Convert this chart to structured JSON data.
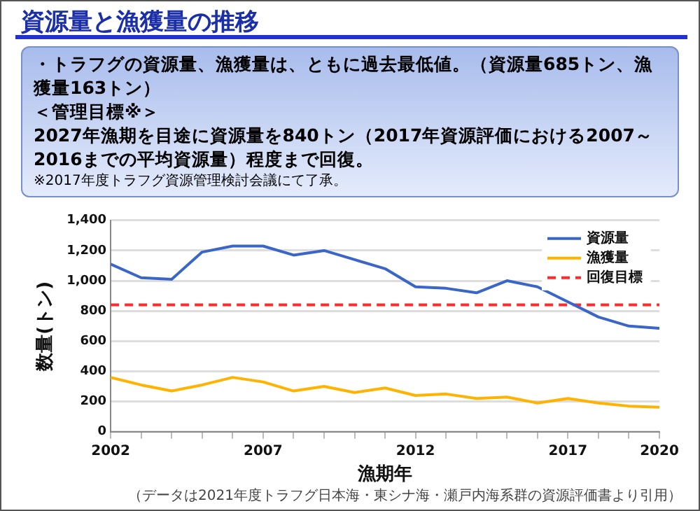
{
  "chart_data": {
    "type": "line",
    "title": "資源量と漁獲量の推移",
    "xlabel": "漁期年",
    "ylabel": "数量(トン)",
    "annotations": [
      "・トラフグの資源量、漁獲量は、ともに過去最低値。（資源量685トン、漁獲量163トン）",
      "＜管理目標※＞",
      "2027年漁期を目途に資源量を840トン（2017年資源評価における2007～2016までの平均資源量）程度まで回復。",
      "※2017年度トラフグ資源管理検討会議にて了承。",
      "（データは2021年度トラフグ日本海・東シナ海・瀬戸内海系群の資源評価書より引用）"
    ],
    "x": [
      2002,
      2003,
      2004,
      2005,
      2006,
      2007,
      2008,
      2009,
      2010,
      2011,
      2012,
      2013,
      2014,
      2015,
      2016,
      2017,
      2018,
      2019,
      2020
    ],
    "series": [
      {
        "name": "資源量",
        "color": "#3a66c8",
        "values": [
          1110,
          1020,
          1010,
          1190,
          1230,
          1230,
          1170,
          1200,
          1140,
          1080,
          960,
          950,
          920,
          1000,
          960,
          860,
          760,
          700,
          685
        ]
      },
      {
        "name": "漁獲量",
        "color": "#ffb300",
        "values": [
          360,
          310,
          270,
          310,
          360,
          330,
          270,
          300,
          260,
          290,
          240,
          250,
          220,
          230,
          190,
          220,
          190,
          170,
          163
        ]
      }
    ],
    "ref_lines": [
      {
        "axis": "y",
        "value": 840,
        "label": "回復目標",
        "color": "#ff2a2a",
        "line_style": "dashed"
      }
    ],
    "xlim": [
      2002,
      2020
    ],
    "xticks": [
      2002,
      {
        "value": 2003,
        "label": null
      },
      {
        "value": 2004,
        "label": null
      },
      {
        "value": 2005,
        "label": null
      },
      {
        "value": 2006,
        "label": null
      },
      2007,
      {
        "value": 2008,
        "label": null
      },
      {
        "value": 2009,
        "label": null
      },
      {
        "value": 2010,
        "label": null
      },
      {
        "value": 2011,
        "label": null
      },
      2012,
      {
        "value": 2013,
        "label": null
      },
      {
        "value": 2014,
        "label": null
      },
      {
        "value": 2015,
        "label": null
      },
      {
        "value": 2016,
        "label": null
      },
      2017,
      {
        "value": 2018,
        "label": null
      },
      {
        "value": 2019,
        "label": null
      },
      2020
    ],
    "ylim": [
      0,
      1400
    ],
    "yticks": [
      0,
      200,
      400,
      600,
      800,
      {
        "value": 1000,
        "label": "1,000"
      },
      {
        "value": 1200,
        "label": "1,200"
      },
      {
        "value": 1400,
        "label": "1,400"
      }
    ],
    "grid": "y",
    "legend": "top right",
    "marker": "none",
    "line_style": "solid"
  }
}
